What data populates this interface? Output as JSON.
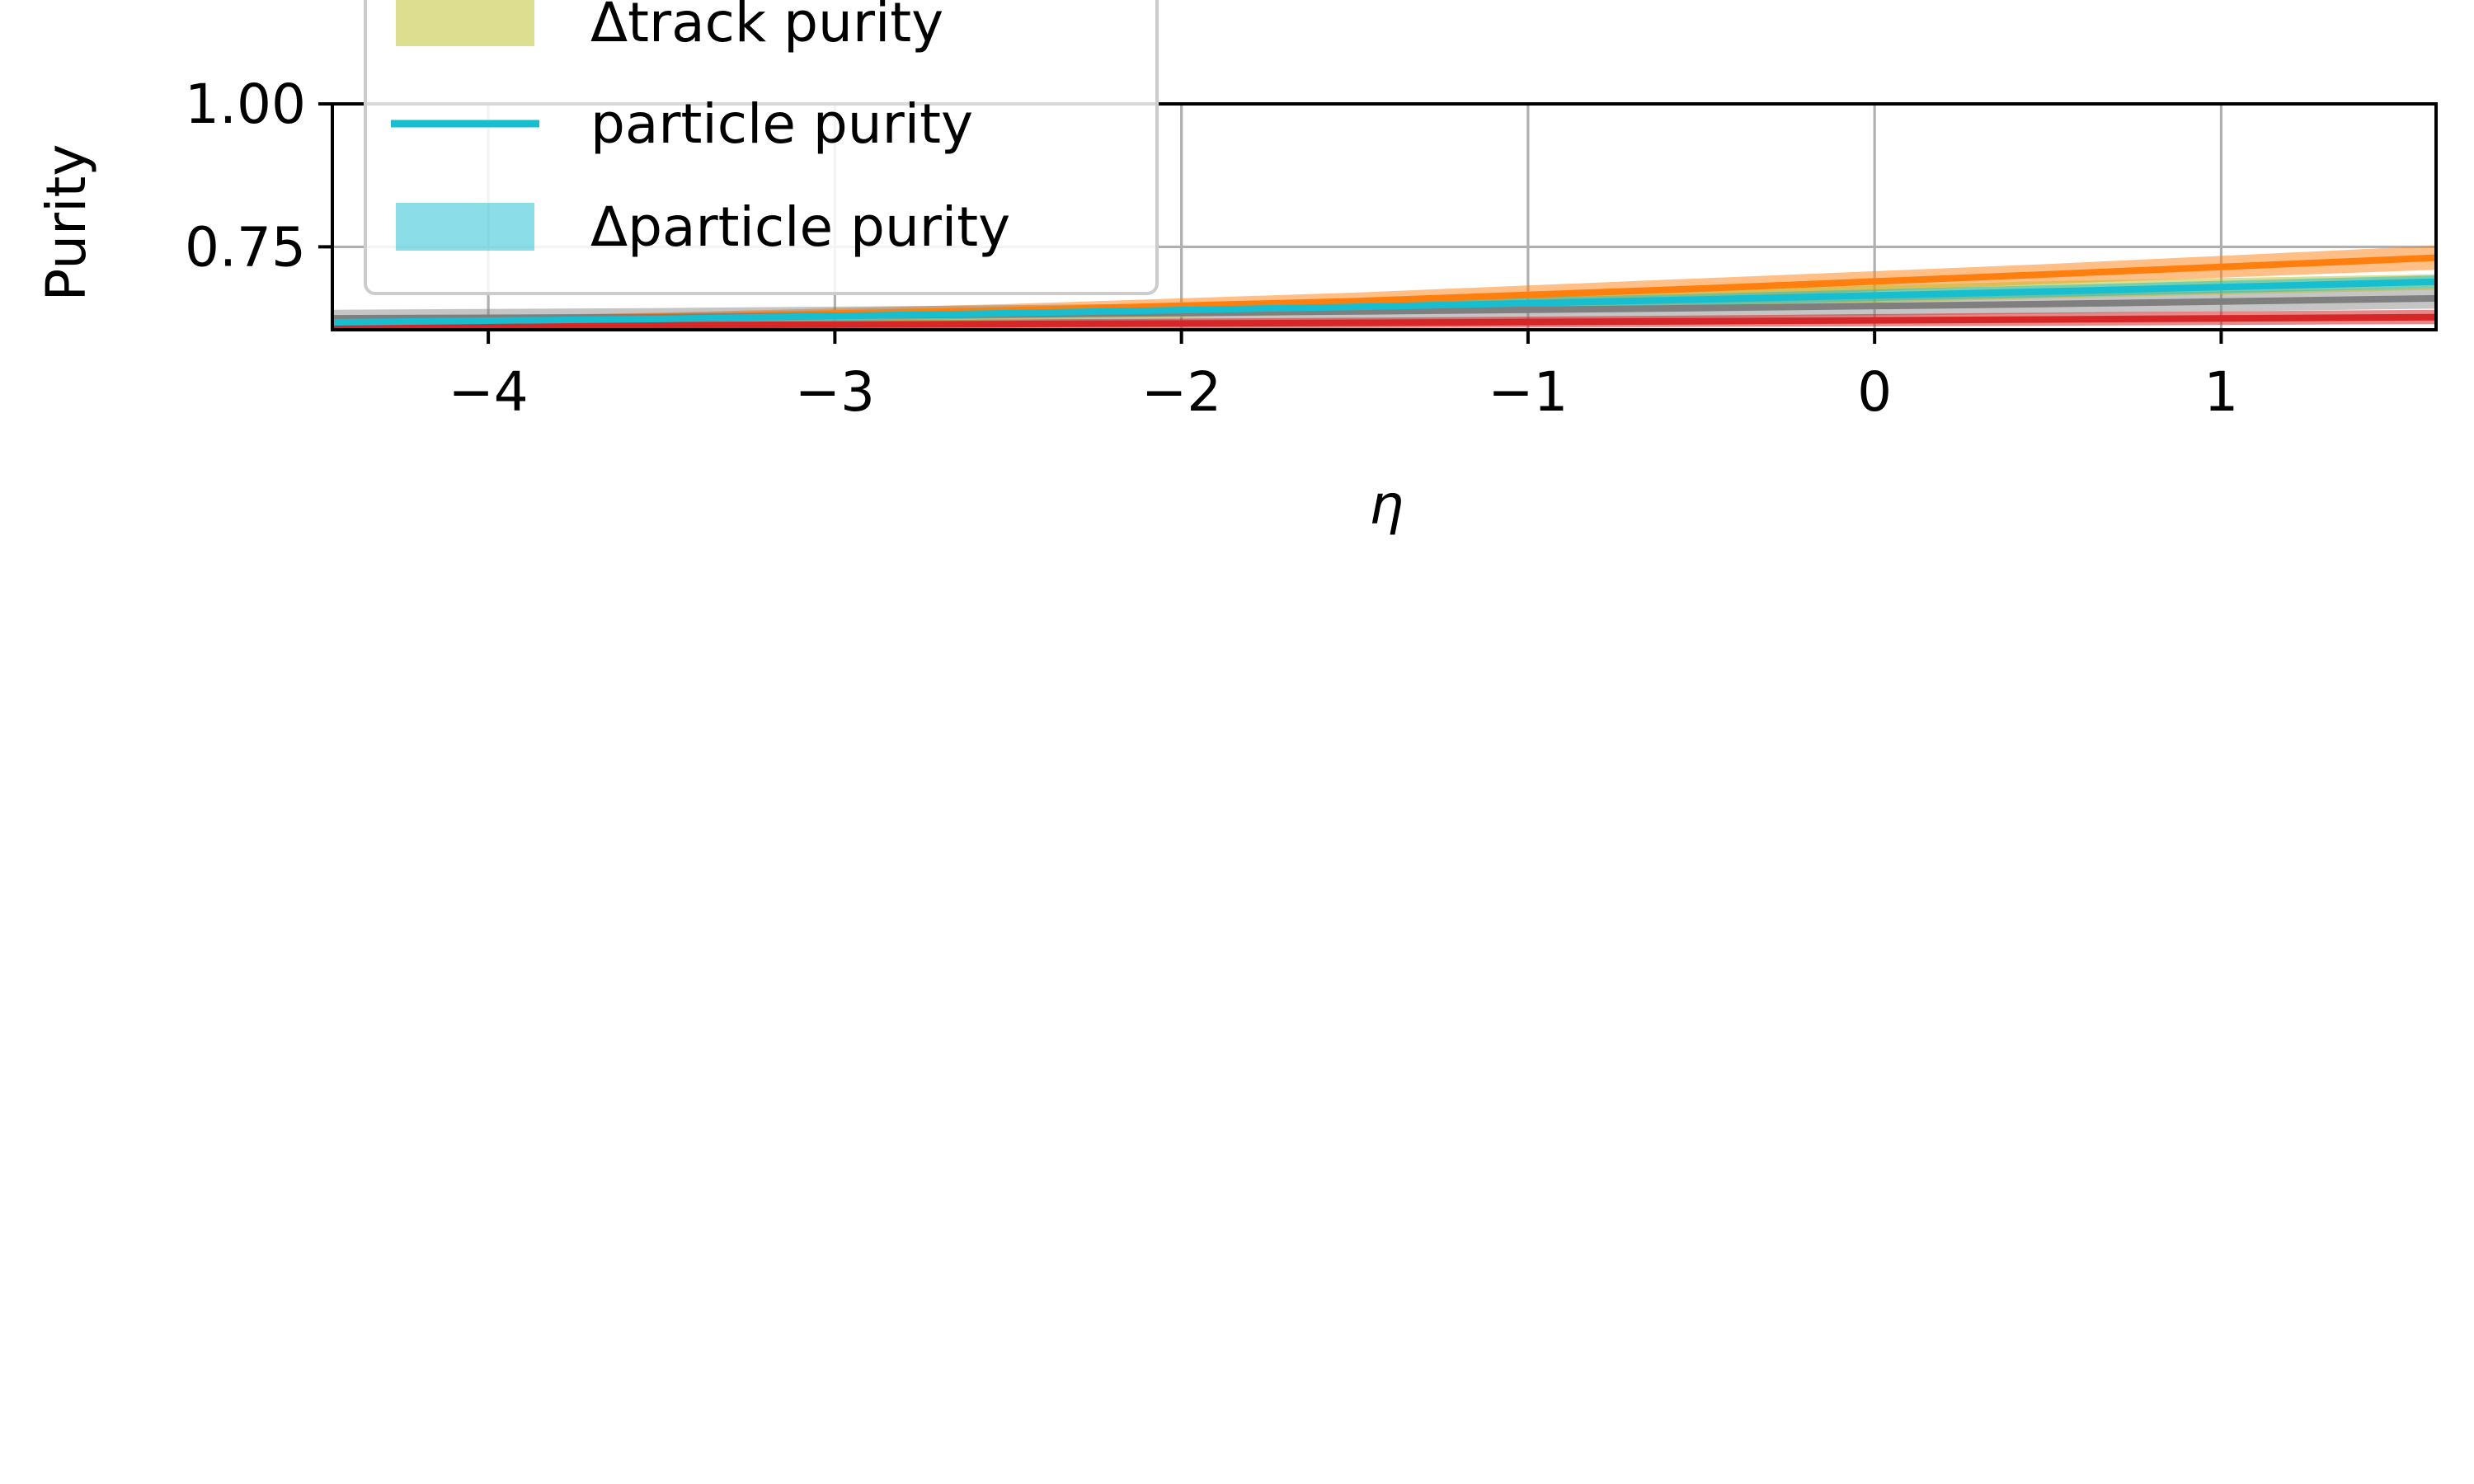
{
  "chart_data": {
    "type": "line",
    "title": "",
    "xlabel": "η",
    "ylabel": "Purity",
    "xlim": [
      -4.45,
      1.62
    ],
    "ylim": [
      0.605,
      1.0
    ],
    "x_ticks": [
      {
        "value": -4,
        "label": "−4"
      },
      {
        "value": -3,
        "label": "−3"
      },
      {
        "value": -2,
        "label": "−2"
      },
      {
        "value": -1,
        "label": "−1"
      },
      {
        "value": 0,
        "label": "0"
      },
      {
        "value": 1,
        "label": "1"
      }
    ],
    "y_ticks": [
      {
        "value": 1.0,
        "label": "1.00"
      },
      {
        "value": 0.75,
        "label": "0.75"
      }
    ],
    "grid": true,
    "legend_position": "upper-left",
    "x": [
      -4.45,
      -3.5,
      -2.5,
      -1.5,
      -0.5,
      0.5,
      1.62
    ],
    "bands": [
      {
        "color": "#ff7f0e",
        "opacity": 0.5,
        "lower": [
          0.615,
          0.62,
          0.628,
          0.64,
          0.66,
          0.685,
          0.71
        ],
        "upper": [
          0.625,
          0.635,
          0.65,
          0.67,
          0.695,
          0.72,
          0.752
        ]
      },
      {
        "color": "#7f7f7f",
        "opacity": 0.45,
        "lower": [
          0.61,
          0.612,
          0.616,
          0.62,
          0.626,
          0.633,
          0.642
        ],
        "upper": [
          0.64,
          0.643,
          0.648,
          0.654,
          0.66,
          0.668,
          0.678
        ]
      },
      {
        "color": "#d62728",
        "opacity": 0.55,
        "lower": [
          0.605,
          0.606,
          0.607,
          0.608,
          0.61,
          0.612,
          0.615
        ],
        "upper": [
          0.618,
          0.62,
          0.623,
          0.626,
          0.63,
          0.635,
          0.64
        ]
      },
      {
        "color": "#bcbd22",
        "opacity": 0.5,
        "lower": [
          0.61,
          0.615,
          0.622,
          0.632,
          0.645,
          0.66,
          0.675
        ],
        "upper": [
          0.625,
          0.633,
          0.645,
          0.66,
          0.675,
          0.69,
          0.702
        ]
      },
      {
        "color": "#17becf",
        "opacity": 0.5,
        "lower": [
          0.61,
          0.616,
          0.625,
          0.635,
          0.648,
          0.662,
          0.678
        ],
        "upper": [
          0.625,
          0.632,
          0.643,
          0.655,
          0.668,
          0.683,
          0.7
        ]
      }
    ],
    "series": [
      {
        "color": "#ff7f0e",
        "values": [
          0.62,
          0.628,
          0.639,
          0.655,
          0.677,
          0.702,
          0.731
        ]
      },
      {
        "color": "#7f7f7f",
        "values": [
          0.625,
          0.627,
          0.632,
          0.637,
          0.643,
          0.65,
          0.66
        ]
      },
      {
        "color": "#d62728",
        "values": [
          0.612,
          0.613,
          0.615,
          0.617,
          0.62,
          0.623,
          0.627
        ]
      },
      {
        "color": "#17becf",
        "values": [
          0.618,
          0.624,
          0.634,
          0.645,
          0.658,
          0.672,
          0.689
        ]
      }
    ],
    "legend": [
      {
        "label": "Δtrack purity",
        "kind": "patch",
        "color": "#bcbd22",
        "opacity": 0.5
      },
      {
        "label": "particle purity",
        "kind": "line",
        "color": "#17becf",
        "opacity": 1
      },
      {
        "label": "Δparticle purity",
        "kind": "patch",
        "color": "#17becf",
        "opacity": 0.5
      }
    ]
  }
}
